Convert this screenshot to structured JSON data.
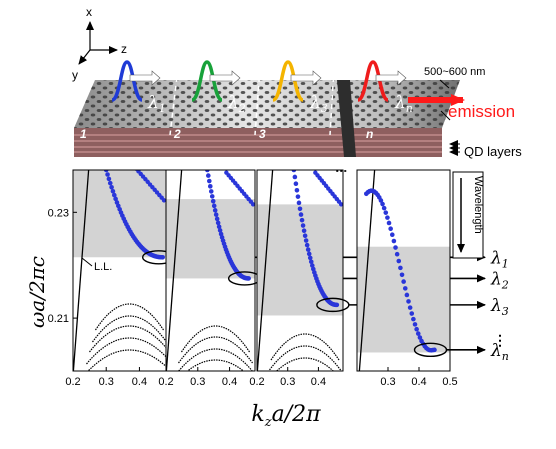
{
  "axes_diagram": {
    "x": "x",
    "y": "y",
    "z": "z"
  },
  "device": {
    "thickness": "500~600 nm",
    "emission": "emission",
    "qd_layers": "QD layers",
    "sections": [
      "1",
      "2",
      "3",
      "n"
    ],
    "lambda_base": "λ",
    "lambda_subs": [
      "1",
      "2",
      "3",
      "n"
    ]
  },
  "wavelength_label": "Wavelength",
  "ellipsis": "⋮",
  "chart_data": {
    "type": "line",
    "ylabel": "ωa/2πc",
    "xlabel": "k_z a/2π",
    "yticks": [
      "0.23",
      "0.21"
    ],
    "ytick_values": [
      0.23,
      0.21
    ],
    "ylim": [
      0.2,
      0.238
    ],
    "annotation": "L.L.",
    "outputs": [
      "1",
      "2",
      "3",
      "n"
    ],
    "panels": [
      {
        "xlim": [
          0.2,
          0.48
        ],
        "xticks": [
          "0.2",
          "0.3",
          "0.4"
        ],
        "xtick_values": [
          0.2,
          0.3,
          0.4
        ],
        "band_gap": [
          0.2215,
          0.238
        ],
        "mode_start": [
          0.3,
          0.238
        ],
        "mode_end": [
          0.47,
          0.2215
        ]
      },
      {
        "xlim": [
          0.2,
          0.48
        ],
        "xticks": [
          "0.2",
          "0.3",
          "0.4"
        ],
        "xtick_values": [
          0.2,
          0.3,
          0.4
        ],
        "band_gap": [
          0.2175,
          0.2325
        ],
        "mode_start": [
          0.33,
          0.238
        ],
        "mode_end": [
          0.46,
          0.2175
        ]
      },
      {
        "xlim": [
          0.2,
          0.48
        ],
        "xticks": [
          "0.2",
          "0.3",
          "0.4"
        ],
        "xtick_values": [
          0.2,
          0.3,
          0.4
        ],
        "band_gap": [
          0.2105,
          0.2315
        ],
        "mode_start": [
          0.32,
          0.238
        ],
        "mode_end": [
          0.46,
          0.2125
        ]
      },
      {
        "xlim": [
          0.2,
          0.5
        ],
        "xticks": [
          "0.3",
          "0.4",
          "0.5"
        ],
        "xtick_values": [
          0.3,
          0.4,
          0.5
        ],
        "band_gap": [
          0.2035,
          0.2235
        ],
        "mode_start": [
          0.23,
          0.2335
        ],
        "mode_end": [
          0.45,
          0.204
        ]
      }
    ]
  }
}
